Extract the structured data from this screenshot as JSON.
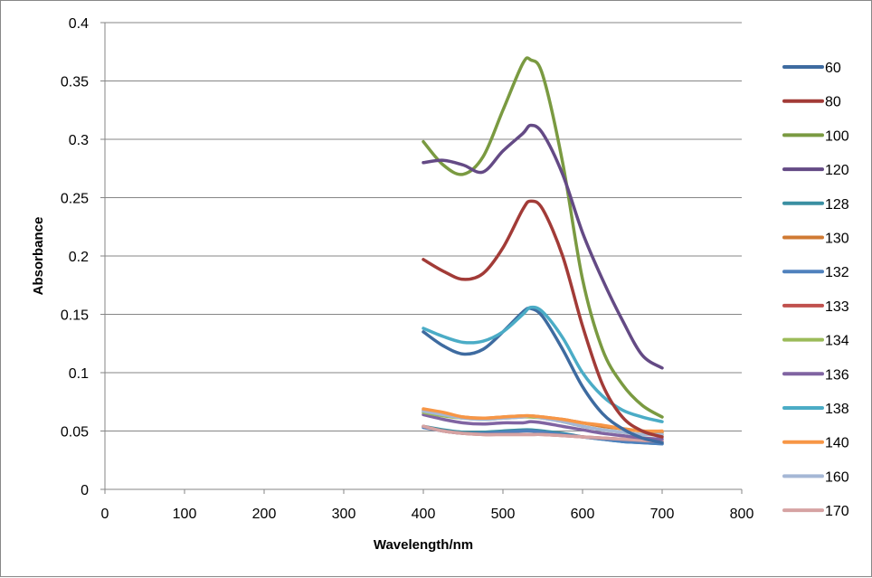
{
  "chart_data": {
    "type": "line",
    "title": "",
    "xlabel": "Wavelength/nm",
    "ylabel": "Absorbance",
    "xlim": [
      0,
      800
    ],
    "ylim": [
      0,
      0.4
    ],
    "xticks": [
      "0",
      "100",
      "200",
      "300",
      "400",
      "500",
      "600",
      "700",
      "800"
    ],
    "yticks": [
      "0",
      "0.05",
      "0.1",
      "0.15",
      "0.2",
      "0.25",
      "0.3",
      "0.35",
      "0.4"
    ],
    "grid": "horizontal",
    "legend": "right",
    "x": [
      400,
      425,
      450,
      475,
      500,
      525,
      535,
      550,
      575,
      600,
      625,
      650,
      675,
      700
    ],
    "series": [
      {
        "name": "60",
        "color": "#3E6BA0",
        "values": [
          0.135,
          0.123,
          0.116,
          0.12,
          0.135,
          0.152,
          0.155,
          0.148,
          0.12,
          0.088,
          0.065,
          0.052,
          0.044,
          0.04
        ]
      },
      {
        "name": "80",
        "color": "#A23B37",
        "values": [
          0.197,
          0.187,
          0.18,
          0.185,
          0.207,
          0.24,
          0.247,
          0.24,
          0.2,
          0.14,
          0.09,
          0.062,
          0.05,
          0.045
        ]
      },
      {
        "name": "100",
        "color": "#7A9A41",
        "values": [
          0.298,
          0.278,
          0.27,
          0.285,
          0.325,
          0.365,
          0.368,
          0.355,
          0.28,
          0.18,
          0.12,
          0.09,
          0.072,
          0.062
        ]
      },
      {
        "name": "120",
        "color": "#644A85",
        "values": [
          0.28,
          0.282,
          0.278,
          0.272,
          0.29,
          0.305,
          0.312,
          0.305,
          0.27,
          0.22,
          0.18,
          0.145,
          0.115,
          0.104
        ]
      },
      {
        "name": "128",
        "color": "#3A8FA2",
        "values": [
          0.054,
          0.051,
          0.049,
          0.049,
          0.05,
          0.051,
          0.051,
          0.05,
          0.048,
          0.045,
          0.043,
          0.041,
          0.04,
          0.039
        ]
      },
      {
        "name": "130",
        "color": "#D07A33",
        "values": [
          0.068,
          0.065,
          0.062,
          0.061,
          0.062,
          0.063,
          0.063,
          0.062,
          0.06,
          0.057,
          0.054,
          0.052,
          0.05,
          0.049
        ]
      },
      {
        "name": "132",
        "color": "#4F81BD",
        "values": [
          0.053,
          0.05,
          0.048,
          0.048,
          0.049,
          0.05,
          0.05,
          0.049,
          0.047,
          0.045,
          0.043,
          0.041,
          0.04,
          0.039
        ]
      },
      {
        "name": "133",
        "color": "#C0504D",
        "values": [
          0.054,
          0.05,
          0.048,
          0.047,
          0.047,
          0.047,
          0.047,
          0.047,
          0.046,
          0.045,
          0.044,
          0.043,
          0.042,
          0.041
        ]
      },
      {
        "name": "134",
        "color": "#9BBB59",
        "values": [
          0.066,
          0.063,
          0.061,
          0.06,
          0.061,
          0.062,
          0.062,
          0.061,
          0.058,
          0.054,
          0.051,
          0.049,
          0.047,
          0.047
        ]
      },
      {
        "name": "136",
        "color": "#8064A2",
        "values": [
          0.064,
          0.06,
          0.057,
          0.056,
          0.057,
          0.057,
          0.058,
          0.057,
          0.054,
          0.051,
          0.048,
          0.046,
          0.044,
          0.043
        ]
      },
      {
        "name": "138",
        "color": "#4BACC6",
        "values": [
          0.138,
          0.131,
          0.126,
          0.127,
          0.135,
          0.15,
          0.156,
          0.152,
          0.13,
          0.1,
          0.08,
          0.068,
          0.062,
          0.058
        ]
      },
      {
        "name": "140",
        "color": "#F79646",
        "values": [
          0.069,
          0.066,
          0.062,
          0.061,
          0.062,
          0.063,
          0.063,
          0.062,
          0.06,
          0.057,
          0.055,
          0.052,
          0.05,
          0.05
        ]
      },
      {
        "name": "160",
        "color": "#A5B7D5",
        "values": [
          0.067,
          0.064,
          0.061,
          0.06,
          0.061,
          0.062,
          0.063,
          0.061,
          0.058,
          0.054,
          0.051,
          0.049,
          0.047,
          0.047
        ]
      },
      {
        "name": "170",
        "color": "#D6A3A3",
        "values": [
          0.054,
          0.05,
          0.048,
          0.047,
          0.047,
          0.047,
          0.047,
          0.047,
          0.046,
          0.045,
          0.044,
          0.043,
          0.042,
          0.041
        ]
      }
    ]
  }
}
